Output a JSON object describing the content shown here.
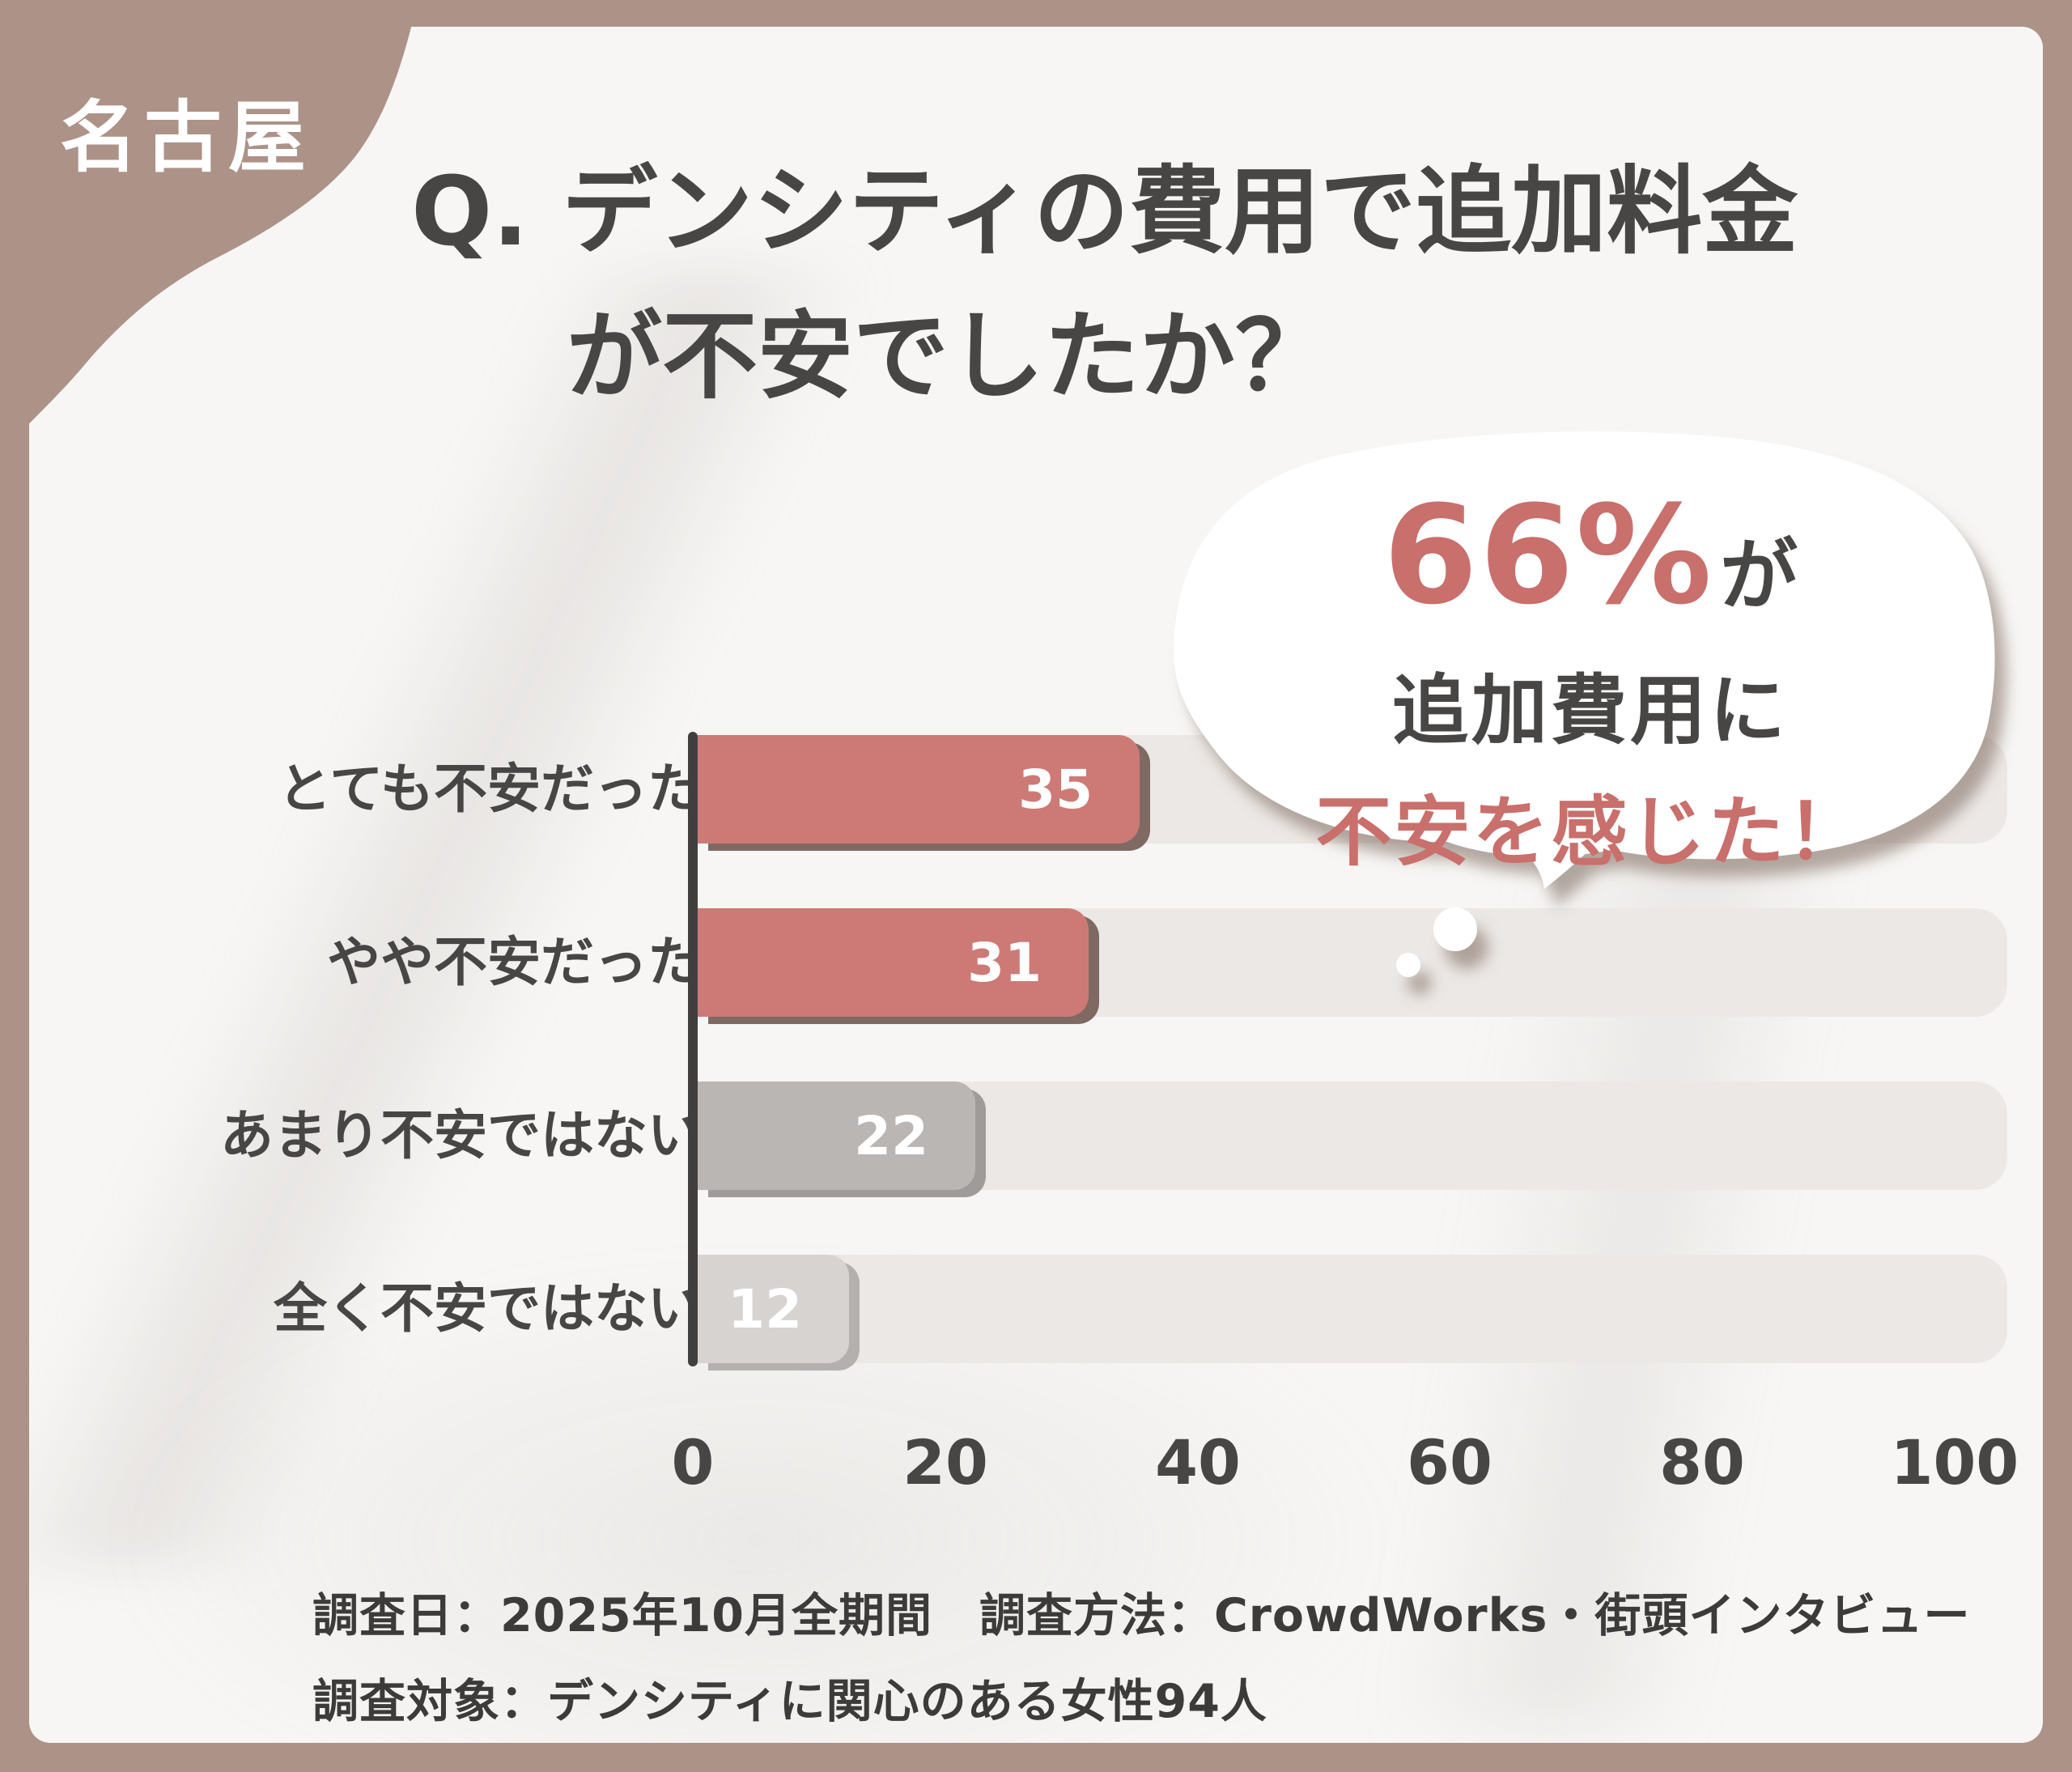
{
  "badge": {
    "label": "名古屋"
  },
  "title": {
    "line1": "Q. デンシティの費用で追加料金",
    "line2": "が不安でしたか？"
  },
  "bubble": {
    "stat": "66%",
    "stat_suffix": "が",
    "line2": "追加費用に",
    "line3": "不安を感じた！"
  },
  "chart_data": {
    "type": "bar",
    "orientation": "horizontal",
    "title": "Q. デンシティの費用で追加料金が不安でしたか？",
    "categories": [
      "とても不安だった",
      "やや不安だった",
      "あまり不安ではない",
      "全く不安ではない"
    ],
    "values": [
      35,
      31,
      22,
      12
    ],
    "value_labels": [
      "35",
      "31",
      "22",
      "12"
    ],
    "bar_colors": [
      "#cd7a76",
      "#cd7a76",
      "#b9b6b4",
      "#d6d3d1"
    ],
    "bar_shadow_colors": [
      "#7e6a63",
      "#7e6a63",
      "#9e9b99",
      "#b3b0ae"
    ],
    "value_label_color": "#ffffff",
    "x_ticks": [
      0,
      20,
      40,
      60,
      80,
      100
    ],
    "xlim": [
      0,
      100
    ],
    "grid": false,
    "legend": false,
    "annotation": "66%が追加費用に不安を感じた！"
  },
  "footer": {
    "line1": "調査日：2025年10月全期間　調査方法：CrowdWorks・街頭インタビュー",
    "line2": "調査対象：デンシティに関心のある女性94人"
  },
  "colors": {
    "frame": "#ad9288",
    "accent": "#cd7a76",
    "accent_text": "#c96f6c",
    "text_dark": "#474645",
    "track": "#ece8e5",
    "axis": "#413f3e",
    "content_bg": "#f7f6f4"
  }
}
